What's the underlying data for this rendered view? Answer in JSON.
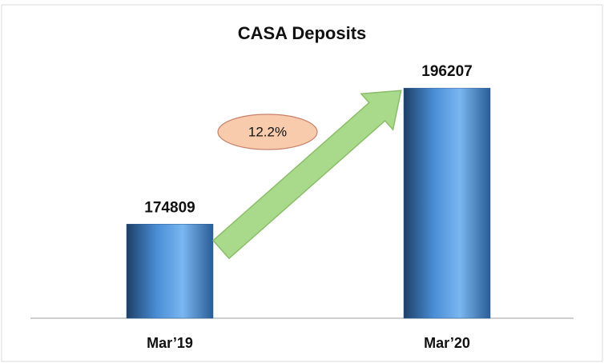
{
  "chart_data": {
    "type": "bar",
    "title": "CASA Deposits",
    "categories": [
      "Mar’19",
      "Mar’20"
    ],
    "values": [
      174809,
      196207
    ],
    "color": "#3f7fc4",
    "ylim": [
      160000,
      200000
    ],
    "annotation": "12.2%"
  }
}
